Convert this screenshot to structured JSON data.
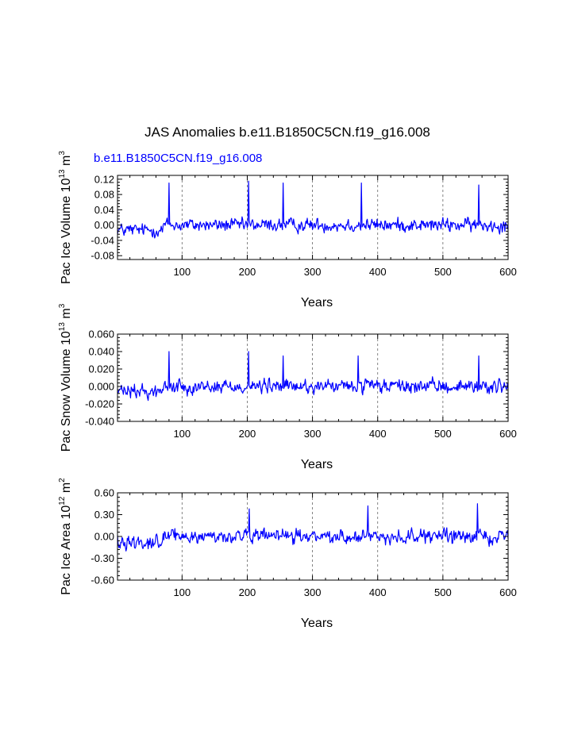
{
  "title": "JAS Anomalies b.e11.B1850C5CN.f19_g16.008",
  "legend_label": "b.e11.B1850C5CN.f19_g16.008",
  "colors": {
    "series": "#0000ff",
    "axes": "#000000",
    "grid": "#666666"
  },
  "chart_data": [
    {
      "type": "line",
      "name": "ice-volume",
      "ylabel": "Pac Ice Volume 10^13 m^3",
      "ylabel_main": "Pac Ice Volume 10",
      "ylabel_exp": "13",
      "ylabel_unit": "m",
      "ylabel_unit_exp": "3",
      "xlabel": "Years",
      "xlim": [
        1,
        600
      ],
      "ylim": [
        -0.09,
        0.13
      ],
      "xticks": [
        100,
        200,
        300,
        400,
        500,
        600
      ],
      "xtick_labels": [
        "100",
        "200",
        "300",
        "400",
        "500",
        "600"
      ],
      "yticks": [
        -0.08,
        -0.04,
        0.0,
        0.04,
        0.08,
        0.12
      ],
      "ytick_labels": [
        "-0.08",
        "-0.04",
        "0.00",
        "0.04",
        "0.08",
        "0.12"
      ],
      "grid_x": [
        100,
        200,
        300,
        400,
        500
      ],
      "series_name": "b.e11.B1850C5CN.f19_g16.008",
      "n_points": 600,
      "approx_peaks": {
        "x": [
          80,
          202,
          255,
          375,
          555
        ],
        "y": [
          0.11,
          0.115,
          0.11,
          0.11,
          0.105
        ]
      }
    },
    {
      "type": "line",
      "name": "snow-volume",
      "ylabel": "Pac Snow Volume 10^13 m^3",
      "ylabel_main": "Pac Snow Volume 10",
      "ylabel_exp": "13",
      "ylabel_unit": "m",
      "ylabel_unit_exp": "3",
      "xlabel": "Years",
      "xlim": [
        1,
        600
      ],
      "ylim": [
        -0.04,
        0.06
      ],
      "xticks": [
        100,
        200,
        300,
        400,
        500,
        600
      ],
      "xtick_labels": [
        "100",
        "200",
        "300",
        "400",
        "500",
        "600"
      ],
      "yticks": [
        -0.04,
        -0.02,
        0.0,
        0.02,
        0.04,
        0.06
      ],
      "ytick_labels": [
        "-0.040",
        "-0.020",
        "0.000",
        "0.020",
        "0.040",
        "0.060"
      ],
      "grid_x": [
        100,
        200,
        300,
        400,
        500
      ],
      "series_name": "b.e11.B1850C5CN.f19_g16.008",
      "n_points": 600,
      "approx_peaks": {
        "x": [
          80,
          202,
          255,
          370,
          555
        ],
        "y": [
          0.04,
          0.04,
          0.035,
          0.035,
          0.035
        ]
      }
    },
    {
      "type": "line",
      "name": "ice-area",
      "ylabel": "Pac Ice Area 10^12 m^2",
      "ylabel_main": "Pac Ice Area 10",
      "ylabel_exp": "12",
      "ylabel_unit": "m",
      "ylabel_unit_exp": "2",
      "xlabel": "Years",
      "xlim": [
        1,
        600
      ],
      "ylim": [
        -0.6,
        0.6
      ],
      "xticks": [
        100,
        200,
        300,
        400,
        500,
        600
      ],
      "xtick_labels": [
        "100",
        "200",
        "300",
        "400",
        "500",
        "600"
      ],
      "yticks": [
        -0.6,
        -0.3,
        0.0,
        0.3,
        0.6
      ],
      "ytick_labels": [
        "-0.60",
        "-0.30",
        "0.00",
        "0.30",
        "0.60"
      ],
      "grid_x": [
        100,
        200,
        300,
        400,
        500
      ],
      "series_name": "b.e11.B1850C5CN.f19_g16.008",
      "n_points": 600,
      "approx_peaks": {
        "x": [
          203,
          385,
          553
        ],
        "y": [
          0.38,
          0.42,
          0.45
        ]
      }
    }
  ]
}
